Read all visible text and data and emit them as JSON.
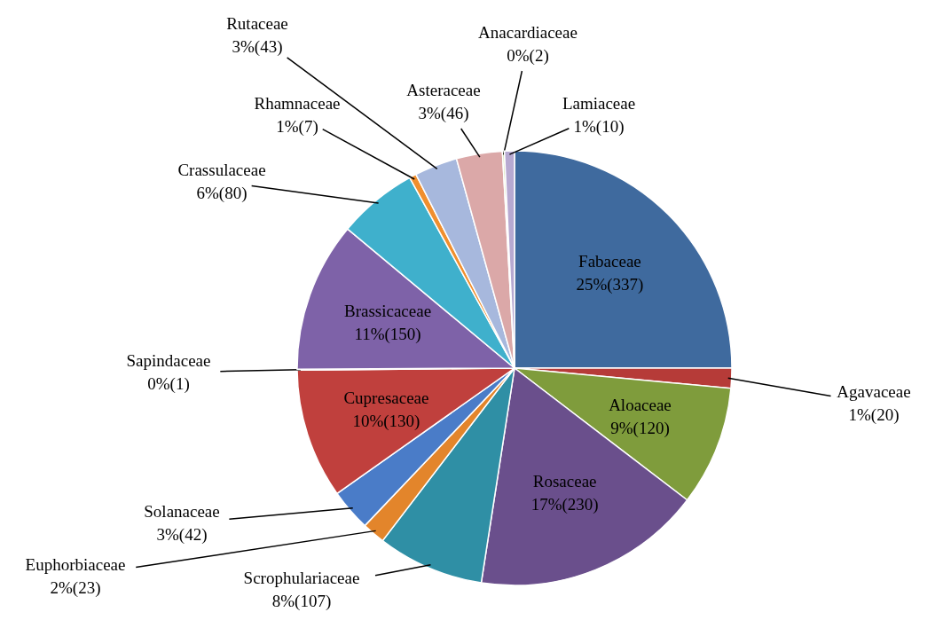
{
  "chart_data": {
    "type": "pie",
    "categories": [
      "Fabaceae",
      "Agavaceae",
      "Aloaceae",
      "Rosaceae",
      "Scrophulariaceae",
      "Euphorbiaceae",
      "Solanaceae",
      "Cupresaceae",
      "Sapindaceae",
      "Brassicaceae",
      "Crassulaceae",
      "Rhamnaceae",
      "Rutaceae",
      "Asteraceae",
      "Anacardiaceae",
      "Lamiaceae"
    ],
    "values": [
      337,
      20,
      120,
      230,
      107,
      23,
      42,
      130,
      1,
      150,
      80,
      7,
      43,
      46,
      2,
      10
    ],
    "value_labels": [
      "25%(337)",
      "1%(20)",
      "9%(120)",
      "17%(230)",
      "8%(107)",
      "2%(23)",
      "3%(42)",
      "10%(130)",
      "0%(1)",
      "11%(150)",
      "6%(80)",
      "1%(7)",
      "3%(43)",
      "3%(46)",
      "0%(2)",
      "1%(10)"
    ],
    "colors": [
      "#3f6a9e",
      "#b63b38",
      "#7f9c3c",
      "#6a4f8c",
      "#2f8fa5",
      "#e3852b",
      "#4a7cc8",
      "#c0403d",
      "#a8c06a",
      "#7e62a8",
      "#3fb0cc",
      "#f08f2e",
      "#a7b8dd",
      "#dba8a8",
      "#c9dba0",
      "#b7a9d1"
    ]
  }
}
